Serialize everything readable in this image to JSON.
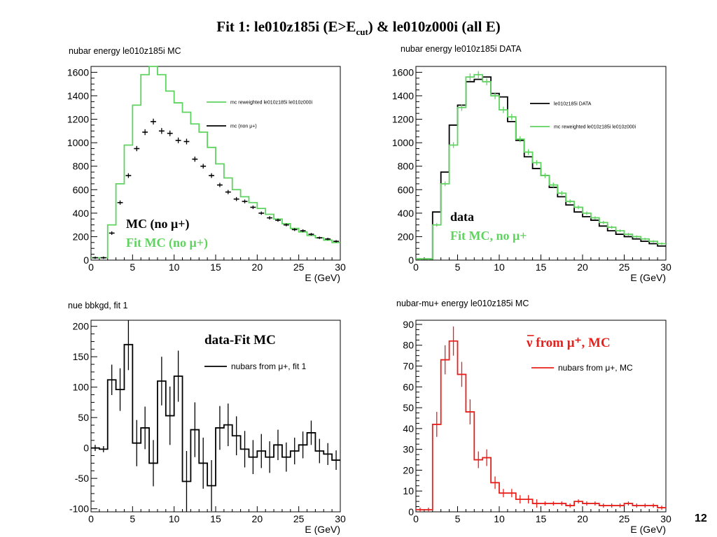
{
  "slide": {
    "title_main": "Fit 1: le010z185i (E>E",
    "title_sub": "cut",
    "title_rest": ") & le010z000i (all E)",
    "page_number": "12"
  },
  "colors": {
    "green": "#5fd35f",
    "black": "#000000",
    "red": "#e8201c"
  },
  "chart_data": [
    {
      "id": "tl",
      "type": "histogram",
      "title": "nubar energy le010z185i MC",
      "xlabel": "E (GeV)",
      "xlim": [
        0,
        30
      ],
      "ylim": [
        0,
        1650
      ],
      "xticks": [
        0,
        5,
        10,
        15,
        20,
        25,
        30
      ],
      "yticks": [
        0,
        200,
        400,
        600,
        800,
        1000,
        1200,
        1400,
        1600
      ],
      "bin_edges": [
        0,
        1,
        2,
        3,
        4,
        5,
        6,
        7,
        8,
        9,
        10,
        11,
        12,
        13,
        14,
        15,
        16,
        17,
        18,
        19,
        20,
        21,
        22,
        23,
        24,
        25,
        26,
        27,
        28,
        29,
        30
      ],
      "series": [
        {
          "name": "mc reweighted le010z185i le010z000i",
          "style": "step",
          "color": "#5fd35f",
          "values": [
            20,
            20,
            300,
            650,
            980,
            1320,
            1580,
            1680,
            1580,
            1440,
            1340,
            1260,
            1160,
            1090,
            960,
            820,
            700,
            600,
            540,
            490,
            440,
            390,
            350,
            310,
            270,
            240,
            210,
            190,
            170,
            150
          ]
        },
        {
          "name": "mc (non μ+)",
          "style": "errorbar",
          "color": "#000000",
          "values": [
            20,
            20,
            230,
            490,
            720,
            950,
            1090,
            1180,
            1100,
            1080,
            1020,
            1010,
            860,
            800,
            720,
            640,
            580,
            520,
            500,
            450,
            400,
            360,
            340,
            300,
            260,
            250,
            220,
            190,
            180,
            160
          ],
          "errors": [
            10,
            10,
            15,
            18,
            20,
            22,
            25,
            25,
            25,
            24,
            24,
            24,
            22,
            20,
            20,
            18,
            18,
            17,
            16,
            15,
            14,
            14,
            13,
            12,
            12,
            12,
            11,
            10,
            10,
            10
          ]
        }
      ],
      "legend": [
        {
          "label": "mc reweighted le010z185i le010z000i",
          "color": "#5fd35f"
        },
        {
          "label": "mc (non μ+)",
          "color": "#000000"
        }
      ],
      "annotations": [
        {
          "text": "MC (no μ+)",
          "color": "#000000"
        },
        {
          "text": "Fit MC (no μ+)",
          "color": "#5fd35f"
        }
      ]
    },
    {
      "id": "tr",
      "type": "histogram",
      "title": "nubar energy le010z185i DATA",
      "xlabel": "E (GeV)",
      "xlim": [
        0,
        30
      ],
      "ylim": [
        0,
        1650
      ],
      "xticks": [
        0,
        5,
        10,
        15,
        20,
        25,
        30
      ],
      "yticks": [
        0,
        200,
        400,
        600,
        800,
        1000,
        1200,
        1400,
        1600
      ],
      "bin_edges": [
        0,
        1,
        2,
        3,
        4,
        5,
        6,
        7,
        8,
        9,
        10,
        11,
        12,
        13,
        14,
        15,
        16,
        17,
        18,
        19,
        20,
        21,
        22,
        23,
        24,
        25,
        26,
        27,
        28,
        29,
        30
      ],
      "series": [
        {
          "name": "le010z185i DATA",
          "style": "step",
          "color": "#000000",
          "values": [
            10,
            10,
            410,
            750,
            1150,
            1320,
            1520,
            1540,
            1560,
            1420,
            1390,
            1180,
            1020,
            880,
            780,
            720,
            620,
            540,
            470,
            410,
            370,
            340,
            290,
            250,
            220,
            200,
            180,
            160,
            140,
            120
          ]
        },
        {
          "name": "mc reweighted le010z185i le010z000i",
          "style": "step",
          "color": "#5fd35f",
          "values": [
            10,
            10,
            300,
            650,
            980,
            1300,
            1560,
            1580,
            1520,
            1400,
            1280,
            1220,
            1030,
            920,
            830,
            720,
            640,
            570,
            500,
            450,
            400,
            360,
            320,
            280,
            250,
            220,
            200,
            180,
            160,
            140
          ],
          "errors": [
            8,
            8,
            15,
            20,
            25,
            28,
            30,
            30,
            30,
            28,
            27,
            26,
            25,
            24,
            22,
            21,
            20,
            18,
            17,
            16,
            15,
            14,
            14,
            13,
            12,
            12,
            11,
            10,
            10,
            10
          ]
        }
      ],
      "legend": [
        {
          "label": "le010z185i DATA",
          "color": "#000000"
        },
        {
          "label": "mc reweighted le010z185i le010z000i",
          "color": "#5fd35f"
        }
      ],
      "annotations": [
        {
          "text": "data",
          "color": "#000000"
        },
        {
          "text": "Fit MC, no μ+",
          "color": "#5fd35f"
        }
      ]
    },
    {
      "id": "bl",
      "type": "histogram",
      "title": "nue bbkgd, fit 1",
      "xlabel": "E (GeV)",
      "xlim": [
        0,
        30
      ],
      "ylim": [
        -105,
        210
      ],
      "xticks": [
        0,
        5,
        10,
        15,
        20,
        25,
        30
      ],
      "yticks": [
        -100,
        -50,
        0,
        50,
        100,
        150,
        200
      ],
      "bin_edges": [
        0,
        1,
        2,
        3,
        4,
        5,
        6,
        7,
        8,
        9,
        10,
        11,
        12,
        13,
        14,
        15,
        16,
        17,
        18,
        19,
        20,
        21,
        22,
        23,
        24,
        25,
        26,
        27,
        28,
        29,
        30
      ],
      "series": [
        {
          "name": "nubars from μ+, fit 1",
          "style": "step-errorbar",
          "color": "#000000",
          "values": [
            0,
            -2,
            112,
            96,
            170,
            8,
            33,
            -25,
            110,
            53,
            118,
            -55,
            30,
            -25,
            -62,
            33,
            38,
            20,
            -2,
            -15,
            -5,
            -15,
            5,
            -15,
            -5,
            5,
            25,
            -5,
            -10,
            -20
          ],
          "errors": [
            5,
            5,
            25,
            35,
            42,
            38,
            35,
            38,
            40,
            48,
            42,
            50,
            45,
            42,
            42,
            36,
            35,
            32,
            30,
            28,
            28,
            26,
            25,
            24,
            22,
            22,
            20,
            20,
            18,
            16
          ]
        }
      ],
      "legend": [
        {
          "label": "nubars from μ+, fit 1",
          "color": "#000000"
        }
      ],
      "annotations": [
        {
          "text": "data-Fit MC",
          "color": "#000000"
        }
      ]
    },
    {
      "id": "br",
      "type": "histogram",
      "title": "nubar-mu+ energy le010z185i MC",
      "xlabel": "E (GeV)",
      "xlim": [
        0,
        30
      ],
      "ylim": [
        0,
        92
      ],
      "xticks": [
        0,
        5,
        10,
        15,
        20,
        25,
        30
      ],
      "yticks": [
        0,
        10,
        20,
        30,
        40,
        50,
        60,
        70,
        80,
        90
      ],
      "bin_edges": [
        0,
        1,
        2,
        3,
        4,
        5,
        6,
        7,
        8,
        9,
        10,
        11,
        12,
        13,
        14,
        15,
        16,
        17,
        18,
        19,
        20,
        21,
        22,
        23,
        24,
        25,
        26,
        27,
        28,
        29,
        30
      ],
      "series": [
        {
          "name": "nubars from μ+, MC",
          "style": "step-errorbar",
          "color": "#e8201c",
          "values": [
            1,
            1,
            42,
            73,
            82,
            66,
            48,
            25,
            26,
            14,
            9,
            9,
            6,
            6,
            4,
            4,
            4,
            4,
            3,
            5,
            4,
            4,
            3,
            3,
            3,
            4,
            3,
            3,
            3,
            2
          ],
          "errors": [
            1,
            1,
            6,
            7,
            7,
            6,
            6,
            4,
            4,
            3,
            2,
            2,
            2,
            2,
            2,
            1,
            1,
            1,
            1,
            1,
            1,
            1,
            1,
            1,
            1,
            1,
            1,
            1,
            1,
            1
          ]
        }
      ],
      "legend": [
        {
          "label": "nubars from μ+, MC",
          "color": "#e8201c"
        }
      ],
      "annotations": [
        {
          "text": "ν from μ⁺, MC",
          "color": "#e8201c",
          "overline": "ν"
        }
      ]
    }
  ]
}
